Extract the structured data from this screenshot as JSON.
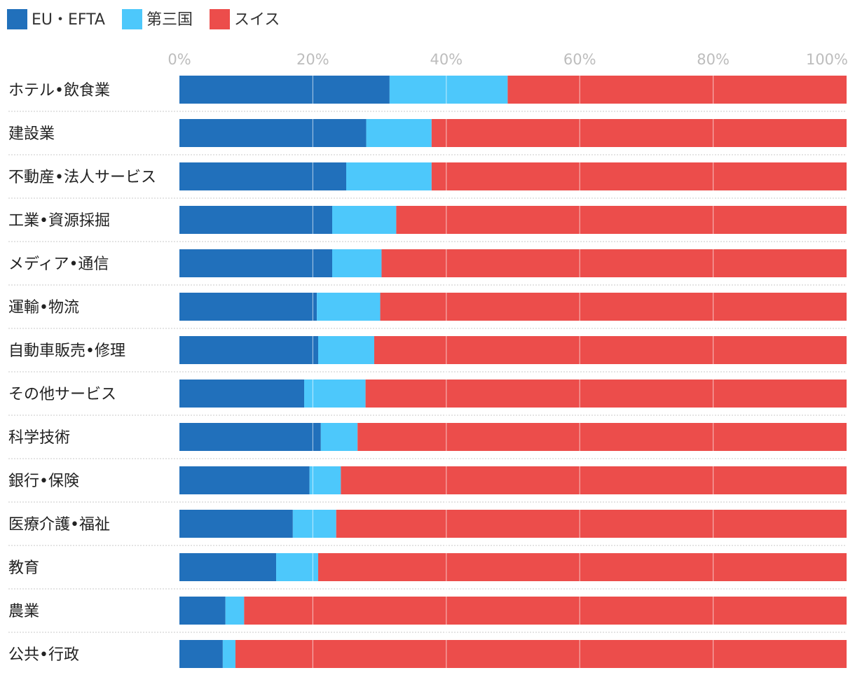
{
  "chart_data": {
    "type": "bar",
    "orientation": "horizontal",
    "stacked": true,
    "normalized": true,
    "title": "",
    "xlabel": "",
    "ylabel": "",
    "xlim": [
      0,
      100
    ],
    "x_ticks": [
      "0%",
      "20%",
      "40%",
      "60%",
      "80%",
      "100%"
    ],
    "x_tick_values": [
      0,
      20,
      40,
      60,
      80,
      100
    ],
    "legend_position": "top-left",
    "grid": true,
    "categories": [
      "ホテル•飲食業",
      "建設業",
      "不動産•法人サービス",
      "工業•資源採掘",
      "メディア•通信",
      "運輸•物流",
      "自動車販売•修理",
      "その他サービス",
      "科学技術",
      "銀行•保険",
      "医療介護•福祉",
      "教育",
      "農業",
      "公共•行政"
    ],
    "series": [
      {
        "name": "EU・EFTA",
        "color": "#2170bb",
        "values": [
          31.5,
          28.0,
          25.0,
          22.9,
          22.9,
          20.6,
          20.8,
          18.7,
          21.2,
          19.5,
          17.0,
          14.5,
          6.9,
          6.5
        ]
      },
      {
        "name": "第三国",
        "color": "#4dc8fb",
        "values": [
          17.7,
          9.8,
          12.8,
          9.6,
          7.4,
          9.5,
          8.4,
          9.2,
          5.5,
          4.7,
          6.5,
          6.3,
          2.8,
          1.9
        ]
      },
      {
        "name": "スイス",
        "color": "#ec4d4b",
        "values": [
          50.8,
          62.2,
          62.2,
          67.5,
          69.7,
          69.9,
          70.8,
          72.1,
          73.3,
          75.8,
          76.5,
          79.2,
          90.3,
          91.6
        ]
      }
    ]
  }
}
